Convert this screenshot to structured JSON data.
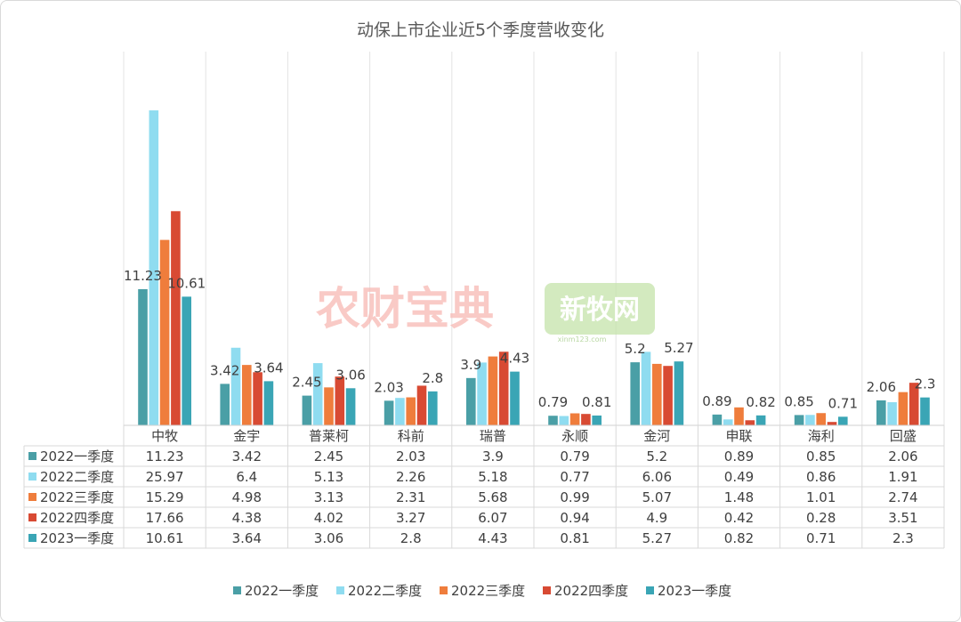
{
  "chart_data": {
    "type": "bar",
    "title": "动保上市企业近5个季度营收变化",
    "categories": [
      "中牧",
      "金宇",
      "普莱柯",
      "科前",
      "瑞普",
      "永顺",
      "金河",
      "申联",
      "海利",
      "回盛"
    ],
    "series": [
      {
        "name": "2022一季度",
        "color": "#4a9fa6",
        "values": [
          11.23,
          3.42,
          2.45,
          2.03,
          3.9,
          0.79,
          5.2,
          0.89,
          0.85,
          2.06
        ],
        "labels": [
          "11.23",
          "3.42",
          "2.45",
          "2.03",
          "3.9",
          "0.79",
          "5.2",
          "0.89",
          "0.85",
          "2.06"
        ]
      },
      {
        "name": "2022二季度",
        "color": "#8fdcf0",
        "values": [
          25.97,
          6.4,
          5.13,
          2.26,
          5.18,
          0.77,
          6.06,
          0.49,
          0.86,
          1.91
        ],
        "labels": [
          "25.97",
          "6.4",
          "5.13",
          "2.26",
          "5.18",
          "0.77",
          "6.06",
          "0.49",
          "0.86",
          "1.91"
        ]
      },
      {
        "name": "2022三季度",
        "color": "#ef7d3c",
        "values": [
          15.29,
          4.98,
          3.13,
          2.31,
          5.68,
          0.99,
          5.07,
          1.48,
          1.01,
          2.74
        ],
        "labels": [
          "15.29",
          "4.98",
          "3.13",
          "2.31",
          "5.68",
          "0.99",
          "5.07",
          "1.48",
          "1.01",
          "2.74"
        ]
      },
      {
        "name": "2022四季度",
        "color": "#d84a33",
        "values": [
          17.66,
          4.38,
          4.02,
          3.27,
          6.07,
          0.94,
          4.9,
          0.42,
          0.28,
          3.51
        ],
        "labels": [
          "17.66",
          "4.38",
          "4.02",
          "3.27",
          "6.07",
          "0.94",
          "4.9",
          "0.42",
          "0.28",
          "3.51"
        ]
      },
      {
        "name": "2023一季度",
        "color": "#3aa5b5",
        "values": [
          10.61,
          3.64,
          3.06,
          2.8,
          4.43,
          0.81,
          5.27,
          0.82,
          0.71,
          2.3
        ],
        "labels": [
          "10.61",
          "3.64",
          "3.06",
          "2.8",
          "4.43",
          "0.81",
          "5.27",
          "0.82",
          "0.71",
          "2.3"
        ]
      }
    ],
    "data_labels": {
      "series_index": [
        0,
        4
      ],
      "first": [
        "11.23",
        "3.42",
        "2.45",
        "2.03",
        "3.9",
        "0.79",
        "5.2",
        "0.89",
        "0.85",
        "2.06"
      ],
      "last": [
        "10.61",
        "3.64",
        "3.06",
        "2.8",
        "4.43",
        "0.81",
        "5.27",
        "0.82",
        "0.71",
        "2.3"
      ]
    },
    "ylim": [
      0,
      27
    ],
    "grid": {
      "horizontal": false,
      "vertical": true
    },
    "legend_position": "bottom",
    "data_table": true
  },
  "watermarks": {
    "left": "农财宝典",
    "right_main": "新牧网",
    "right_sub": "xinm123.com"
  }
}
